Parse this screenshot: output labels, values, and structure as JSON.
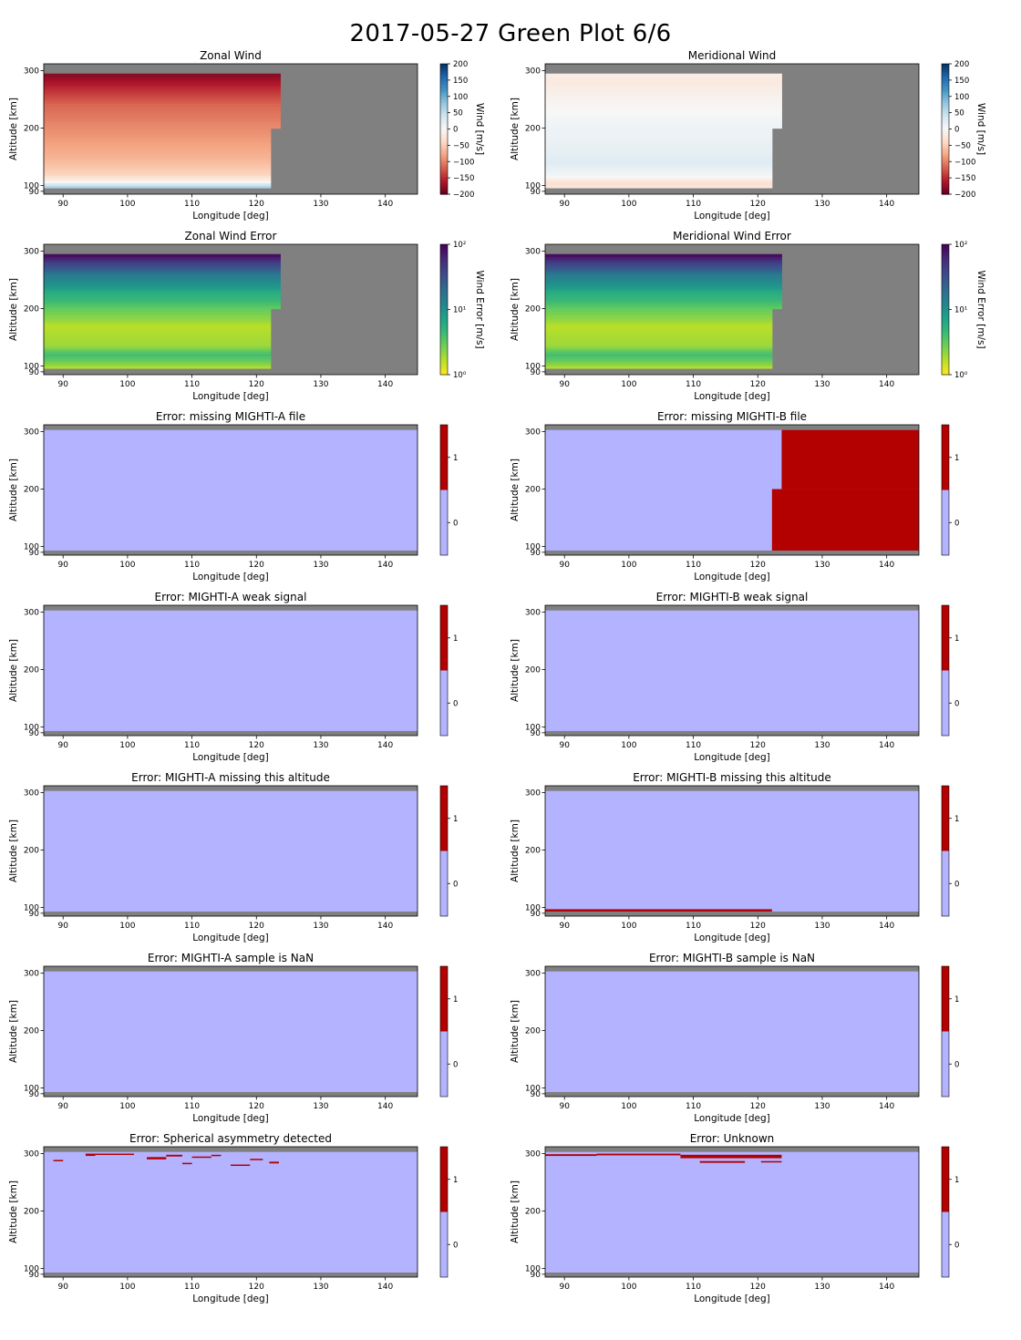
{
  "suptitle": "2017-05-27 Green Plot 6/6",
  "colors": {
    "background_gray": "#808080",
    "flag_zero": "#b3b3ff",
    "flag_one": "#b30000",
    "rdbu": [
      "#67001f",
      "#b2182b",
      "#d6604d",
      "#f4a582",
      "#fddbc7",
      "#f7f7f7",
      "#d1e5f0",
      "#92c5de",
      "#4393c3",
      "#2166ac",
      "#053061"
    ],
    "viridis_r": [
      "#fde725",
      "#b5de2b",
      "#6ece58",
      "#35b779",
      "#1f9e89",
      "#26828e",
      "#31688e",
      "#3e4989",
      "#482878",
      "#440154"
    ]
  },
  "chart_data": [
    {
      "type": "heatmap",
      "id": "zonal-wind",
      "title": "Zonal Wind",
      "xlabel": "Longitude [deg]",
      "ylabel": "Altitude [km]",
      "xlim": [
        87,
        145
      ],
      "ylim": [
        85,
        312
      ],
      "xticks": [
        "90",
        "100",
        "110",
        "120",
        "130",
        "140"
      ],
      "yticks": [
        "90",
        "100",
        "200",
        "300"
      ],
      "colorbar": {
        "scale": "diverging",
        "label": "Wind [m/s]",
        "range": [
          -200,
          200
        ],
        "ticks": [
          "200",
          "150",
          "100",
          "50",
          "0",
          "−50",
          "−100",
          "−150",
          "−200"
        ]
      },
      "data_extent": {
        "lon_end_low": 122.2,
        "lon_end_high": 123.7,
        "alt_step": 200,
        "alt_min": 96,
        "alt_max": 295
      },
      "profile": [
        {
          "alt": 96,
          "value": 70
        },
        {
          "alt": 102,
          "value": 40
        },
        {
          "alt": 108,
          "value": -10
        },
        {
          "alt": 120,
          "value": -45
        },
        {
          "alt": 150,
          "value": -70
        },
        {
          "alt": 180,
          "value": -85
        },
        {
          "alt": 210,
          "value": -100
        },
        {
          "alt": 240,
          "value": -115
        },
        {
          "alt": 270,
          "value": -150
        },
        {
          "alt": 295,
          "value": -185
        }
      ]
    },
    {
      "type": "heatmap",
      "id": "meridional-wind",
      "title": "Meridional Wind",
      "xlabel": "Longitude [deg]",
      "ylabel": "Altitude [km]",
      "xlim": [
        87,
        145
      ],
      "ylim": [
        85,
        312
      ],
      "xticks": [
        "90",
        "100",
        "110",
        "120",
        "130",
        "140"
      ],
      "yticks": [
        "90",
        "100",
        "200",
        "300"
      ],
      "colorbar": {
        "scale": "diverging",
        "label": "Wind [m/s]",
        "range": [
          -200,
          200
        ],
        "ticks": [
          "200",
          "150",
          "100",
          "50",
          "0",
          "−50",
          "−100",
          "−150",
          "−200"
        ]
      },
      "data_extent": {
        "lon_end_low": 122.2,
        "lon_end_high": 123.7,
        "alt_step": 200,
        "alt_min": 96,
        "alt_max": 295
      },
      "profile": [
        {
          "alt": 96,
          "value": -20
        },
        {
          "alt": 105,
          "value": -35
        },
        {
          "alt": 115,
          "value": 0
        },
        {
          "alt": 140,
          "value": 25
        },
        {
          "alt": 170,
          "value": 15
        },
        {
          "alt": 200,
          "value": 10
        },
        {
          "alt": 230,
          "value": 0
        },
        {
          "alt": 260,
          "value": -10
        },
        {
          "alt": 280,
          "value": -20
        },
        {
          "alt": 295,
          "value": -15
        }
      ]
    },
    {
      "type": "heatmap",
      "id": "zonal-wind-error",
      "title": "Zonal Wind Error",
      "xlabel": "Longitude [deg]",
      "ylabel": "Altitude [km]",
      "xlim": [
        87,
        145
      ],
      "ylim": [
        85,
        312
      ],
      "xticks": [
        "90",
        "100",
        "110",
        "120",
        "130",
        "140"
      ],
      "yticks": [
        "90",
        "100",
        "200",
        "300"
      ],
      "colorbar": {
        "scale": "log",
        "label": "Wind Error [m/s]",
        "range": [
          1,
          100
        ],
        "ticks": [
          "10²",
          "10¹",
          "10⁰"
        ]
      },
      "data_extent": {
        "lon_end_low": 122.2,
        "lon_end_high": 123.7,
        "alt_step": 200,
        "alt_min": 96,
        "alt_max": 295
      },
      "profile": [
        {
          "alt": 96,
          "value": 1.5
        },
        {
          "alt": 110,
          "value": 3
        },
        {
          "alt": 120,
          "value": 4
        },
        {
          "alt": 135,
          "value": 2
        },
        {
          "alt": 170,
          "value": 1.6
        },
        {
          "alt": 200,
          "value": 3
        },
        {
          "alt": 230,
          "value": 6
        },
        {
          "alt": 260,
          "value": 15
        },
        {
          "alt": 280,
          "value": 40
        },
        {
          "alt": 295,
          "value": 90
        }
      ]
    },
    {
      "type": "heatmap",
      "id": "meridional-wind-error",
      "title": "Meridional Wind Error",
      "xlabel": "Longitude [deg]",
      "ylabel": "Altitude [km]",
      "xlim": [
        87,
        145
      ],
      "ylim": [
        85,
        312
      ],
      "xticks": [
        "90",
        "100",
        "110",
        "120",
        "130",
        "140"
      ],
      "yticks": [
        "90",
        "100",
        "200",
        "300"
      ],
      "colorbar": {
        "scale": "log",
        "label": "Wind Error [m/s]",
        "range": [
          1,
          100
        ],
        "ticks": [
          "10²",
          "10¹",
          "10⁰"
        ]
      },
      "data_extent": {
        "lon_end_low": 122.2,
        "lon_end_high": 123.7,
        "alt_step": 200,
        "alt_min": 96,
        "alt_max": 295
      },
      "profile": [
        {
          "alt": 96,
          "value": 1.5
        },
        {
          "alt": 110,
          "value": 3
        },
        {
          "alt": 120,
          "value": 4
        },
        {
          "alt": 135,
          "value": 2
        },
        {
          "alt": 170,
          "value": 1.6
        },
        {
          "alt": 200,
          "value": 3
        },
        {
          "alt": 230,
          "value": 6
        },
        {
          "alt": 260,
          "value": 15
        },
        {
          "alt": 280,
          "value": 40
        },
        {
          "alt": 295,
          "value": 90
        }
      ]
    },
    {
      "type": "heatmap",
      "id": "flag-missing-a-file",
      "title": "Error: missing MIGHTI-A file",
      "xlabel": "Longitude [deg]",
      "ylabel": "Altitude [km]",
      "xlim": [
        87,
        145
      ],
      "ylim": [
        85,
        312
      ],
      "xticks": [
        "90",
        "100",
        "110",
        "120",
        "130",
        "140"
      ],
      "yticks": [
        "90",
        "100",
        "200",
        "300"
      ],
      "colorbar": {
        "scale": "binary",
        "ticks": [
          "1",
          "0"
        ]
      },
      "flag_regions": []
    },
    {
      "type": "heatmap",
      "id": "flag-missing-b-file",
      "title": "Error: missing MIGHTI-B file",
      "xlabel": "Longitude [deg]",
      "ylabel": "Altitude [km]",
      "xlim": [
        87,
        145
      ],
      "ylim": [
        85,
        312
      ],
      "xticks": [
        "90",
        "100",
        "110",
        "120",
        "130",
        "140"
      ],
      "yticks": [
        "90",
        "100",
        "200",
        "300"
      ],
      "colorbar": {
        "scale": "binary",
        "ticks": [
          "1",
          "0"
        ]
      },
      "flag_regions": [
        {
          "lon": [
            123.7,
            145
          ],
          "alt": [
            200,
            303
          ]
        },
        {
          "lon": [
            122.2,
            145
          ],
          "alt": [
            93,
            200
          ]
        }
      ]
    },
    {
      "type": "heatmap",
      "id": "flag-weak-a",
      "title": "Error: MIGHTI-A weak signal",
      "xlabel": "Longitude [deg]",
      "ylabel": "Altitude [km]",
      "xlim": [
        87,
        145
      ],
      "ylim": [
        85,
        312
      ],
      "xticks": [
        "90",
        "100",
        "110",
        "120",
        "130",
        "140"
      ],
      "yticks": [
        "90",
        "100",
        "200",
        "300"
      ],
      "colorbar": {
        "scale": "binary",
        "ticks": [
          "1",
          "0"
        ]
      },
      "flag_regions": []
    },
    {
      "type": "heatmap",
      "id": "flag-weak-b",
      "title": "Error: MIGHTI-B weak signal",
      "xlabel": "Longitude [deg]",
      "ylabel": "Altitude [km]",
      "xlim": [
        87,
        145
      ],
      "ylim": [
        85,
        312
      ],
      "xticks": [
        "90",
        "100",
        "110",
        "120",
        "130",
        "140"
      ],
      "yticks": [
        "90",
        "100",
        "200",
        "300"
      ],
      "colorbar": {
        "scale": "binary",
        "ticks": [
          "1",
          "0"
        ]
      },
      "flag_regions": []
    },
    {
      "type": "heatmap",
      "id": "flag-missing-alt-a",
      "title": "Error: MIGHTI-A missing this altitude",
      "xlabel": "Longitude [deg]",
      "ylabel": "Altitude [km]",
      "xlim": [
        87,
        145
      ],
      "ylim": [
        85,
        312
      ],
      "xticks": [
        "90",
        "100",
        "110",
        "120",
        "130",
        "140"
      ],
      "yticks": [
        "90",
        "100",
        "200",
        "300"
      ],
      "colorbar": {
        "scale": "binary",
        "ticks": [
          "1",
          "0"
        ]
      },
      "flag_regions": []
    },
    {
      "type": "heatmap",
      "id": "flag-missing-alt-b",
      "title": "Error: MIGHTI-B missing this altitude",
      "xlabel": "Longitude [deg]",
      "ylabel": "Altitude [km]",
      "xlim": [
        87,
        145
      ],
      "ylim": [
        85,
        312
      ],
      "xticks": [
        "90",
        "100",
        "110",
        "120",
        "130",
        "140"
      ],
      "yticks": [
        "90",
        "100",
        "200",
        "300"
      ],
      "colorbar": {
        "scale": "binary",
        "ticks": [
          "1",
          "0"
        ]
      },
      "flag_regions": [
        {
          "lon": [
            87,
            122.2
          ],
          "alt": [
            93,
            97
          ]
        }
      ]
    },
    {
      "type": "heatmap",
      "id": "flag-nan-a",
      "title": "Error: MIGHTI-A sample is NaN",
      "xlabel": "Longitude [deg]",
      "ylabel": "Altitude [km]",
      "xlim": [
        87,
        145
      ],
      "ylim": [
        85,
        312
      ],
      "xticks": [
        "90",
        "100",
        "110",
        "120",
        "130",
        "140"
      ],
      "yticks": [
        "90",
        "100",
        "200",
        "300"
      ],
      "colorbar": {
        "scale": "binary",
        "ticks": [
          "1",
          "0"
        ]
      },
      "flag_regions": []
    },
    {
      "type": "heatmap",
      "id": "flag-nan-b",
      "title": "Error: MIGHTI-B sample is NaN",
      "xlabel": "Longitude [deg]",
      "ylabel": "Altitude [km]",
      "xlim": [
        87,
        145
      ],
      "ylim": [
        85,
        312
      ],
      "xticks": [
        "90",
        "100",
        "110",
        "120",
        "130",
        "140"
      ],
      "yticks": [
        "90",
        "100",
        "200",
        "300"
      ],
      "colorbar": {
        "scale": "binary",
        "ticks": [
          "1",
          "0"
        ]
      },
      "flag_regions": []
    },
    {
      "type": "heatmap",
      "id": "flag-spherical",
      "title": "Error: Spherical asymmetry detected",
      "xlabel": "Longitude [deg]",
      "ylabel": "Altitude [km]",
      "xlim": [
        87,
        145
      ],
      "ylim": [
        85,
        312
      ],
      "xticks": [
        "90",
        "100",
        "110",
        "120",
        "130",
        "140"
      ],
      "yticks": [
        "90",
        "100",
        "200",
        "300"
      ],
      "colorbar": {
        "scale": "binary",
        "ticks": [
          "1",
          "0"
        ]
      },
      "flag_regions": [
        {
          "lon": [
            88.5,
            90
          ],
          "alt": [
            287,
            289
          ]
        },
        {
          "lon": [
            93.5,
            95
          ],
          "alt": [
            296,
            300
          ]
        },
        {
          "lon": [
            95,
            101
          ],
          "alt": [
            298,
            300
          ]
        },
        {
          "lon": [
            103,
            106
          ],
          "alt": [
            290,
            294
          ]
        },
        {
          "lon": [
            106,
            108.5
          ],
          "alt": [
            295,
            298
          ]
        },
        {
          "lon": [
            108.5,
            110
          ],
          "alt": [
            282,
            284
          ]
        },
        {
          "lon": [
            110,
            113
          ],
          "alt": [
            293,
            295
          ]
        },
        {
          "lon": [
            113,
            114.5
          ],
          "alt": [
            296,
            298
          ]
        },
        {
          "lon": [
            116,
            119
          ],
          "alt": [
            279,
            281
          ]
        },
        {
          "lon": [
            119,
            121
          ],
          "alt": [
            289,
            291
          ]
        },
        {
          "lon": [
            122,
            123.5
          ],
          "alt": [
            283,
            286
          ]
        }
      ]
    },
    {
      "type": "heatmap",
      "id": "flag-unknown",
      "title": "Error: Unknown",
      "xlabel": "Longitude [deg]",
      "ylabel": "Altitude [km]",
      "xlim": [
        87,
        145
      ],
      "ylim": [
        85,
        312
      ],
      "xticks": [
        "90",
        "100",
        "110",
        "120",
        "130",
        "140"
      ],
      "yticks": [
        "90",
        "100",
        "200",
        "300"
      ],
      "colorbar": {
        "scale": "binary",
        "ticks": [
          "1",
          "0"
        ]
      },
      "flag_regions": [
        {
          "lon": [
            87,
            95
          ],
          "alt": [
            296,
            299
          ]
        },
        {
          "lon": [
            95,
            108
          ],
          "alt": [
            297,
            300
          ]
        },
        {
          "lon": [
            108,
            123.7
          ],
          "alt": [
            292,
            298
          ]
        },
        {
          "lon": [
            111,
            118
          ],
          "alt": [
            284,
            287
          ]
        },
        {
          "lon": [
            120.5,
            123.7
          ],
          "alt": [
            285,
            287
          ]
        }
      ]
    }
  ]
}
